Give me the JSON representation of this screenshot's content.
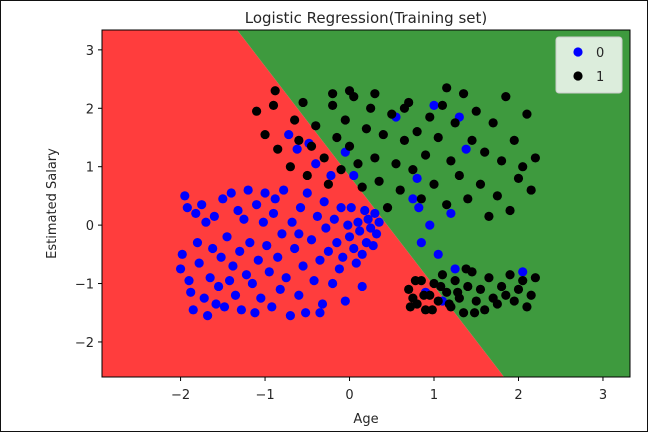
{
  "chart_data": {
    "type": "scatter",
    "title": "Logistic Regression(Training set)",
    "xlabel": "Age",
    "ylabel": "Estimated Salary",
    "xlim": [
      -2.93,
      3.32
    ],
    "ylim": [
      -2.6,
      3.34
    ],
    "xticks": [
      -2,
      -1,
      0,
      1,
      2,
      3
    ],
    "yticks": [
      -2,
      -1,
      0,
      1,
      2,
      3
    ],
    "grid": false,
    "legend_position": "top-right",
    "decision_boundary": {
      "class_0_region_color": "#ff3d3d",
      "class_1_region_color": "#3e9a3e",
      "line": [
        [
          -1.33,
          3.34
        ],
        [
          1.83,
          -2.6
        ]
      ]
    },
    "series": [
      {
        "name": "0",
        "color": "#0000ff",
        "points": [
          [
            -2.0,
            -0.75
          ],
          [
            -1.98,
            -0.5
          ],
          [
            -1.95,
            0.5
          ],
          [
            -1.92,
            0.3
          ],
          [
            -1.9,
            -0.95
          ],
          [
            -1.88,
            -1.15
          ],
          [
            -1.85,
            -1.45
          ],
          [
            -1.82,
            0.2
          ],
          [
            -1.8,
            -0.3
          ],
          [
            -1.78,
            -0.65
          ],
          [
            -1.75,
            0.35
          ],
          [
            -1.72,
            -1.25
          ],
          [
            -1.7,
            0.05
          ],
          [
            -1.68,
            -1.55
          ],
          [
            -1.65,
            -0.9
          ],
          [
            -1.62,
            -0.4
          ],
          [
            -1.6,
            0.15
          ],
          [
            -1.58,
            -1.35
          ],
          [
            -1.55,
            -1.05
          ],
          [
            -1.52,
            -0.55
          ],
          [
            -1.5,
            0.45
          ],
          [
            -1.48,
            -1.4
          ],
          [
            -1.45,
            -0.2
          ],
          [
            -1.42,
            -0.95
          ],
          [
            -1.4,
            0.55
          ],
          [
            -1.38,
            -0.7
          ],
          [
            -1.35,
            -1.2
          ],
          [
            -1.32,
            0.25
          ],
          [
            -1.3,
            -0.45
          ],
          [
            -1.28,
            -1.45
          ],
          [
            -1.25,
            0.1
          ],
          [
            -1.22,
            -0.85
          ],
          [
            -1.2,
            0.6
          ],
          [
            -1.18,
            -0.3
          ],
          [
            -1.15,
            -1.0
          ],
          [
            -1.12,
            -1.5
          ],
          [
            -1.1,
            0.35
          ],
          [
            -1.08,
            -0.6
          ],
          [
            -1.05,
            -1.25
          ],
          [
            -1.02,
            0.05
          ],
          [
            -1.0,
            0.55
          ],
          [
            -0.98,
            -0.35
          ],
          [
            -0.95,
            -0.8
          ],
          [
            -0.92,
            -1.4
          ],
          [
            -0.9,
            0.2
          ],
          [
            -0.88,
            0.45
          ],
          [
            -0.85,
            -0.55
          ],
          [
            -0.82,
            -1.1
          ],
          [
            -0.8,
            -0.15
          ],
          [
            -0.78,
            0.6
          ],
          [
            -0.75,
            -0.9
          ],
          [
            -0.72,
            1.55
          ],
          [
            -0.7,
            -1.55
          ],
          [
            -0.68,
            0.05
          ],
          [
            -0.65,
            -0.4
          ],
          [
            -0.62,
            1.3
          ],
          [
            -0.6,
            -1.2
          ],
          [
            -0.58,
            0.3
          ],
          [
            -0.55,
            -0.7
          ],
          [
            -0.52,
            -1.5
          ],
          [
            -0.5,
            0.55
          ],
          [
            -0.48,
            1.4
          ],
          [
            -0.45,
            -0.25
          ],
          [
            -0.42,
            -0.95
          ],
          [
            -0.4,
            1.05
          ],
          [
            -0.38,
            0.15
          ],
          [
            -0.35,
            -0.6
          ],
          [
            -0.32,
            -1.35
          ],
          [
            -0.3,
            0.4
          ],
          [
            -0.28,
            -0.05
          ],
          [
            -0.25,
            -0.45
          ],
          [
            -0.22,
            0.85
          ],
          [
            -0.2,
            -1.0
          ],
          [
            -0.18,
            0.1
          ],
          [
            -0.15,
            -0.3
          ],
          [
            -0.12,
            -0.75
          ],
          [
            -0.1,
            0.3
          ],
          [
            -0.08,
            -0.55
          ],
          [
            -0.05,
            -1.3
          ],
          [
            -0.02,
            0.0
          ],
          [
            0.0,
            -0.2
          ],
          [
            0.02,
            0.3
          ],
          [
            0.05,
            -0.4
          ],
          [
            0.08,
            -0.65
          ],
          [
            0.1,
            0.05
          ],
          [
            0.12,
            -0.1
          ],
          [
            0.15,
            -0.5
          ],
          [
            0.18,
            0.25
          ],
          [
            0.2,
            -0.3
          ],
          [
            0.22,
            0.1
          ],
          [
            0.25,
            -0.05
          ],
          [
            0.28,
            -0.35
          ],
          [
            0.3,
            0.2
          ],
          [
            0.32,
            -0.15
          ],
          [
            0.35,
            0.05
          ],
          [
            0.05,
            0.85
          ],
          [
            -0.05,
            1.25
          ],
          [
            0.55,
            1.85
          ],
          [
            0.8,
            0.8
          ],
          [
            0.82,
            0.3
          ],
          [
            0.85,
            -0.3
          ],
          [
            0.9,
            -1.15
          ],
          [
            0.95,
            0.0
          ],
          [
            1.0,
            2.05
          ],
          [
            1.05,
            -0.5
          ],
          [
            1.1,
            -1.3
          ],
          [
            1.2,
            0.2
          ],
          [
            1.3,
            1.85
          ],
          [
            1.38,
            1.3
          ],
          [
            1.25,
            -0.75
          ],
          [
            2.05,
            -0.8
          ],
          [
            0.75,
            0.45
          ],
          [
            -0.35,
            -1.5
          ],
          [
            -0.6,
            -0.15
          ],
          [
            0.15,
            -1.05
          ]
        ]
      },
      {
        "name": "1",
        "color": "#000000",
        "points": [
          [
            -1.1,
            1.95
          ],
          [
            -1.0,
            1.55
          ],
          [
            -0.9,
            2.05
          ],
          [
            -0.85,
            1.3
          ],
          [
            -0.88,
            2.3
          ],
          [
            -0.7,
            1.0
          ],
          [
            -0.65,
            1.8
          ],
          [
            -0.6,
            1.45
          ],
          [
            -0.55,
            2.1
          ],
          [
            -0.5,
            0.85
          ],
          [
            -0.45,
            1.35
          ],
          [
            -0.4,
            1.7
          ],
          [
            -0.3,
            1.15
          ],
          [
            -0.25,
            0.7
          ],
          [
            -0.2,
            2.05
          ],
          [
            -0.15,
            1.5
          ],
          [
            -0.1,
            0.95
          ],
          [
            -0.05,
            1.8
          ],
          [
            0.0,
            1.35
          ],
          [
            0.05,
            2.2
          ],
          [
            0.1,
            1.05
          ],
          [
            0.15,
            0.65
          ],
          [
            0.2,
            1.65
          ],
          [
            0.25,
            2.0
          ],
          [
            0.3,
            1.15
          ],
          [
            0.35,
            0.75
          ],
          [
            0.4,
            1.55
          ],
          [
            0.45,
            0.3
          ],
          [
            0.5,
            1.9
          ],
          [
            0.55,
            1.05
          ],
          [
            0.6,
            0.6
          ],
          [
            0.65,
            1.45
          ],
          [
            0.7,
            2.1
          ],
          [
            0.75,
            0.95
          ],
          [
            0.8,
            1.6
          ],
          [
            0.85,
            0.45
          ],
          [
            0.9,
            1.2
          ],
          [
            0.95,
            1.85
          ],
          [
            1.0,
            0.7
          ],
          [
            1.05,
            1.5
          ],
          [
            1.1,
            2.05
          ],
          [
            1.15,
            0.35
          ],
          [
            1.2,
            1.1
          ],
          [
            1.25,
            1.75
          ],
          [
            1.3,
            0.85
          ],
          [
            1.35,
            2.25
          ],
          [
            1.4,
            0.45
          ],
          [
            1.45,
            1.45
          ],
          [
            1.5,
            1.95
          ],
          [
            1.55,
            0.7
          ],
          [
            1.6,
            1.25
          ],
          [
            1.65,
            0.15
          ],
          [
            1.7,
            1.75
          ],
          [
            1.75,
            0.5
          ],
          [
            1.8,
            1.1
          ],
          [
            1.85,
            2.2
          ],
          [
            1.9,
            0.25
          ],
          [
            1.95,
            1.45
          ],
          [
            2.0,
            0.8
          ],
          [
            2.05,
            1.0
          ],
          [
            2.1,
            1.9
          ],
          [
            2.15,
            0.6
          ],
          [
            2.2,
            1.15
          ],
          [
            0.3,
            2.25
          ],
          [
            0.0,
            2.3
          ],
          [
            -0.2,
            2.25
          ],
          [
            0.65,
            2.0
          ],
          [
            1.15,
            2.35
          ],
          [
            0.7,
            -1.1
          ],
          [
            0.75,
            -1.25
          ],
          [
            0.8,
            -1.35
          ],
          [
            0.85,
            -0.95
          ],
          [
            0.9,
            -1.45
          ],
          [
            0.95,
            -1.2
          ],
          [
            1.0,
            -1.0
          ],
          [
            1.05,
            -1.3
          ],
          [
            1.1,
            -0.85
          ],
          [
            1.15,
            -1.15
          ],
          [
            1.2,
            -1.4
          ],
          [
            1.25,
            -0.95
          ],
          [
            1.3,
            -1.25
          ],
          [
            1.35,
            -1.5
          ],
          [
            1.4,
            -1.05
          ],
          [
            1.45,
            -0.8
          ],
          [
            1.5,
            -1.3
          ],
          [
            1.55,
            -1.1
          ],
          [
            1.6,
            -1.45
          ],
          [
            1.65,
            -0.9
          ],
          [
            1.7,
            -1.25
          ],
          [
            1.75,
            -1.35
          ],
          [
            1.8,
            -1.05
          ],
          [
            1.85,
            -1.2
          ],
          [
            1.9,
            -0.85
          ],
          [
            1.95,
            -1.3
          ],
          [
            2.0,
            -1.1
          ],
          [
            2.05,
            -0.95
          ],
          [
            2.1,
            -1.4
          ],
          [
            2.15,
            -1.2
          ],
          [
            2.2,
            -0.9
          ],
          [
            0.72,
            -1.4
          ],
          [
            0.78,
            -0.95
          ],
          [
            0.88,
            -1.2
          ],
          [
            0.98,
            -1.45
          ],
          [
            1.08,
            -1.05
          ],
          [
            1.18,
            -1.35
          ],
          [
            1.28,
            -1.15
          ],
          [
            1.38,
            -0.75
          ],
          [
            1.48,
            -1.5
          ]
        ]
      }
    ]
  }
}
